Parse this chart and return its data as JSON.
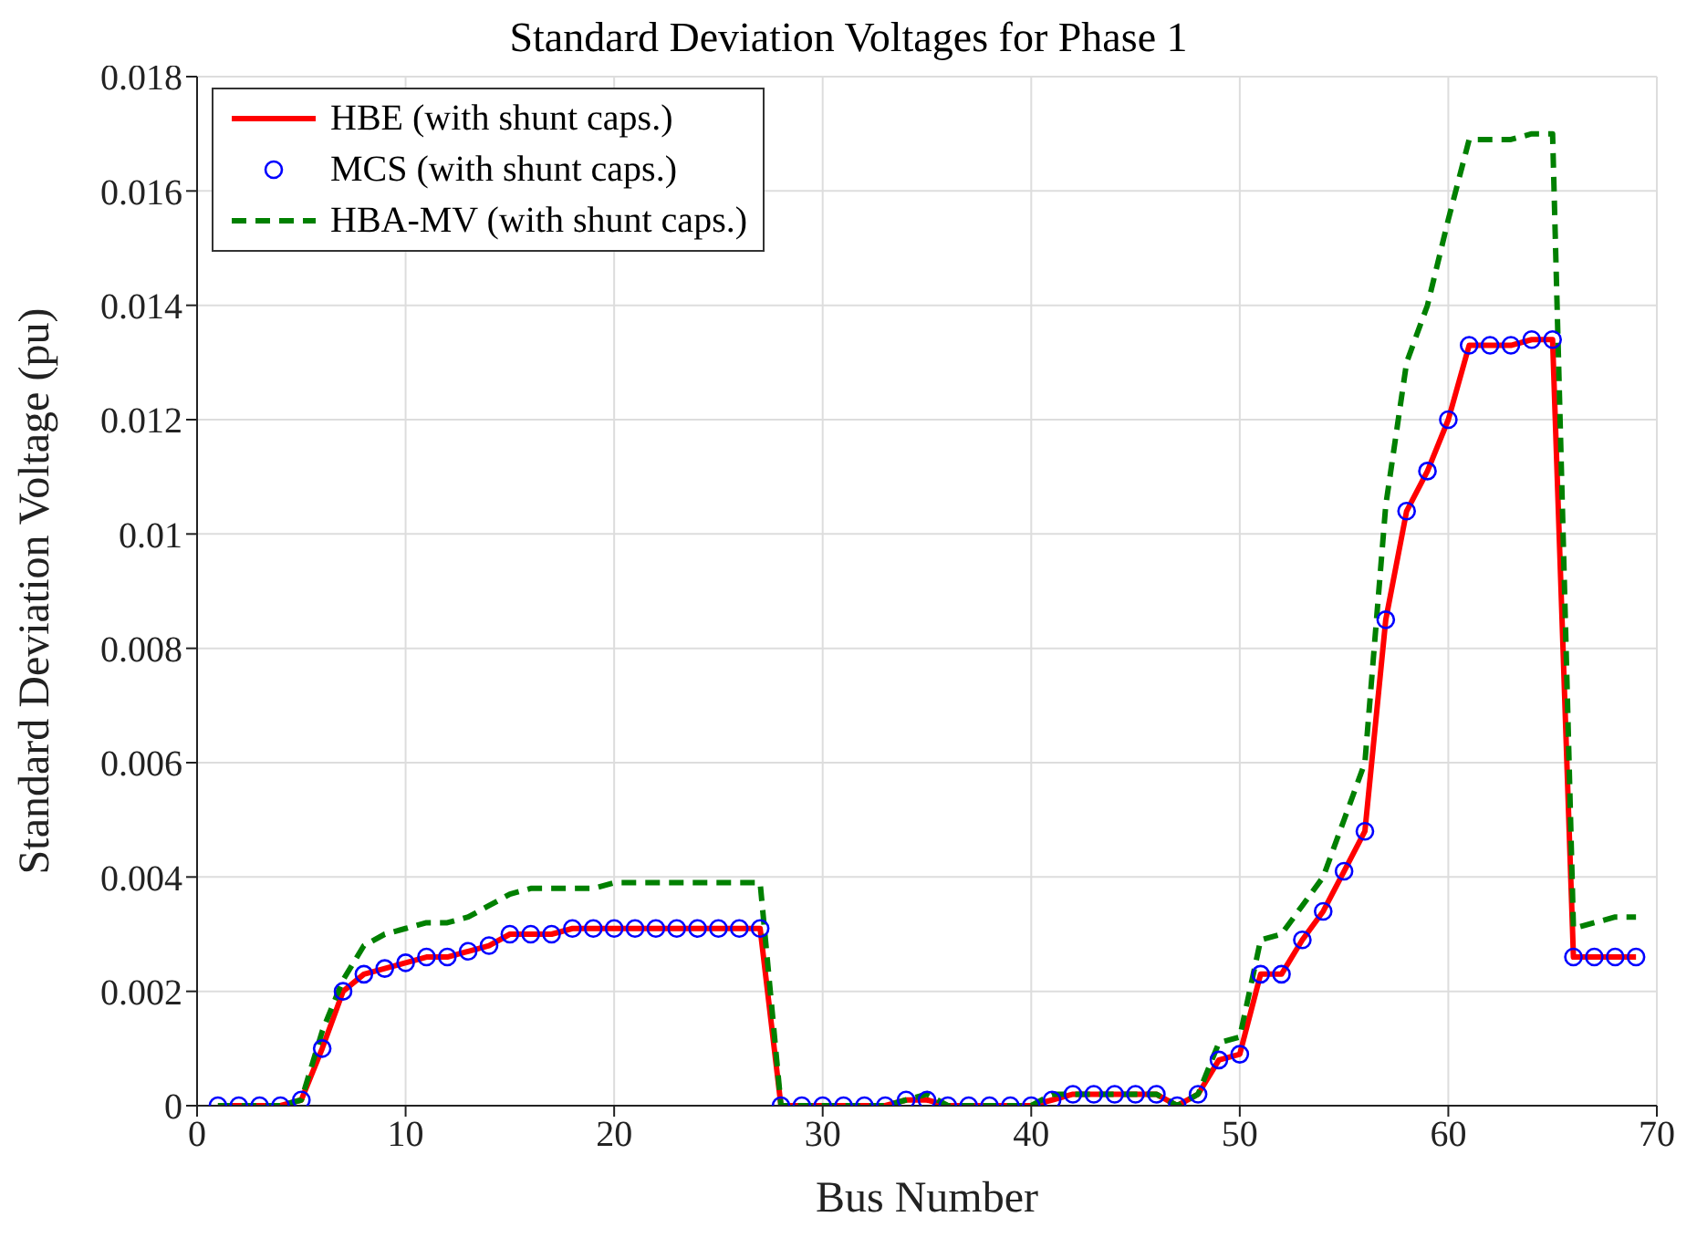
{
  "chart_data": {
    "type": "line",
    "title": "Standard Deviation Voltages for Phase 1",
    "xlabel": "Bus Number",
    "ylabel": "Standard Deviation Voltage (pu)",
    "x": [
      1,
      2,
      3,
      4,
      5,
      6,
      7,
      8,
      9,
      10,
      11,
      12,
      13,
      14,
      15,
      16,
      17,
      18,
      19,
      20,
      21,
      22,
      23,
      24,
      25,
      26,
      27,
      28,
      29,
      30,
      31,
      32,
      33,
      34,
      35,
      36,
      37,
      38,
      39,
      40,
      41,
      42,
      43,
      44,
      45,
      46,
      47,
      48,
      49,
      50,
      51,
      52,
      53,
      54,
      55,
      56,
      57,
      58,
      59,
      60,
      61,
      62,
      63,
      64,
      65,
      66,
      67,
      68,
      69
    ],
    "series": [
      {
        "name": "HBE (with shunt caps.)",
        "type": "line",
        "color": "#ff0000",
        "line_style": "solid",
        "marker": "none",
        "values": [
          0,
          0,
          0,
          0,
          0.0001,
          0.001,
          0.002,
          0.0023,
          0.0024,
          0.0025,
          0.0026,
          0.0026,
          0.0027,
          0.0028,
          0.003,
          0.003,
          0.003,
          0.0031,
          0.0031,
          0.0031,
          0.0031,
          0.0031,
          0.0031,
          0.0031,
          0.0031,
          0.0031,
          0.0031,
          0,
          0,
          0,
          0,
          0,
          0,
          0.0001,
          0.0001,
          0,
          0,
          0,
          0,
          0,
          0.0001,
          0.0002,
          0.0002,
          0.0002,
          0.0002,
          0.0002,
          0,
          0.0002,
          0.0008,
          0.0009,
          0.0023,
          0.0023,
          0.0029,
          0.0034,
          0.0041,
          0.0048,
          0.0085,
          0.0104,
          0.0111,
          0.012,
          0.0133,
          0.0133,
          0.0133,
          0.0134,
          0.0134,
          0.0026,
          0.0026,
          0.0026,
          0.0026
        ]
      },
      {
        "name": "MCS (with shunt caps.)",
        "type": "scatter",
        "color": "#0000ff",
        "marker": "circle",
        "values": [
          0,
          0,
          0,
          0,
          0.0001,
          0.001,
          0.002,
          0.0023,
          0.0024,
          0.0025,
          0.0026,
          0.0026,
          0.0027,
          0.0028,
          0.003,
          0.003,
          0.003,
          0.0031,
          0.0031,
          0.0031,
          0.0031,
          0.0031,
          0.0031,
          0.0031,
          0.0031,
          0.0031,
          0.0031,
          0,
          0,
          0,
          0,
          0,
          0,
          0.0001,
          0.0001,
          0,
          0,
          0,
          0,
          0,
          0.0001,
          0.0002,
          0.0002,
          0.0002,
          0.0002,
          0.0002,
          0,
          0.0002,
          0.0008,
          0.0009,
          0.0023,
          0.0023,
          0.0029,
          0.0034,
          0.0041,
          0.0048,
          0.0085,
          0.0104,
          0.0111,
          0.012,
          0.0133,
          0.0133,
          0.0133,
          0.0134,
          0.0134,
          0.0026,
          0.0026,
          0.0026,
          0.0026
        ]
      },
      {
        "name": "HBA-MV (with shunt caps.)",
        "type": "line",
        "color": "#008000",
        "line_style": "dashed",
        "marker": "none",
        "values": [
          0,
          0,
          0,
          0,
          0.0001,
          0.0013,
          0.0022,
          0.0028,
          0.003,
          0.0031,
          0.0032,
          0.0032,
          0.0033,
          0.0035,
          0.0037,
          0.0038,
          0.0038,
          0.0038,
          0.0038,
          0.0039,
          0.0039,
          0.0039,
          0.0039,
          0.0039,
          0.0039,
          0.0039,
          0.0039,
          0,
          0,
          0,
          0,
          0,
          0,
          0.0001,
          0.0002,
          0,
          0,
          0,
          0,
          0,
          0.0002,
          0.0002,
          0.0002,
          0.0002,
          0.0002,
          0.0002,
          0,
          0.0002,
          0.0011,
          0.0012,
          0.0029,
          0.003,
          0.0035,
          0.004,
          0.005,
          0.006,
          0.0105,
          0.013,
          0.014,
          0.0155,
          0.0169,
          0.0169,
          0.0169,
          0.017,
          0.017,
          0.0031,
          0.0032,
          0.0033,
          0.0033
        ]
      }
    ],
    "xlim": [
      0,
      70
    ],
    "xticks": [
      0,
      10,
      20,
      30,
      40,
      50,
      60,
      70
    ],
    "ylim": [
      0,
      0.018
    ],
    "yticks": [
      0,
      0.002,
      0.004,
      0.006,
      0.008,
      0.01,
      0.012,
      0.014,
      0.016,
      0.018
    ],
    "grid": true,
    "legend": "top left"
  }
}
